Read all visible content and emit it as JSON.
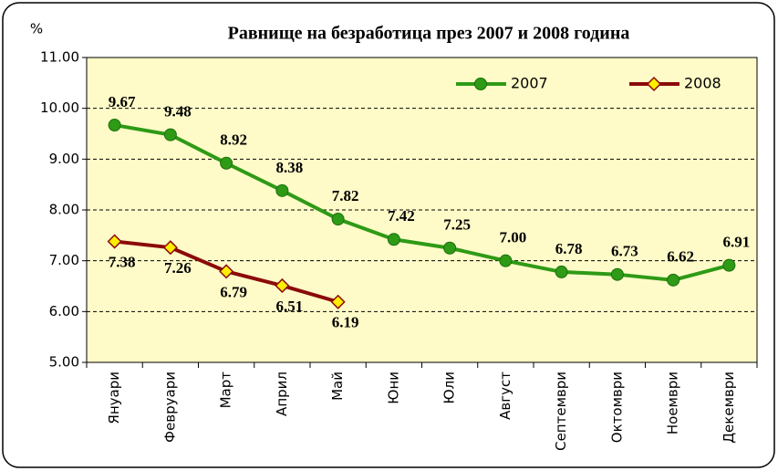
{
  "chart_data": {
    "type": "line",
    "title": "Равнище на безработица през 2007 и 2008 година",
    "y_label": "%",
    "categories": [
      "Януари",
      "Февруари",
      "Март",
      "Април",
      "Май",
      "Юни",
      "Юли",
      "Август",
      "Септември",
      "Октомври",
      "Ноември",
      "Декември"
    ],
    "series": [
      {
        "name": "2007",
        "color": "#2e9a16",
        "marker": "circle",
        "values": [
          9.67,
          9.48,
          8.92,
          8.38,
          7.82,
          7.42,
          7.25,
          7.0,
          6.78,
          6.73,
          6.62,
          6.91
        ],
        "value_labels": [
          "9.67",
          "9.48",
          "8.92",
          "8.38",
          "7.82",
          "7.42",
          "7.25",
          "7.00",
          "6.78",
          "6.73",
          "6.62",
          "6.91"
        ]
      },
      {
        "name": "2008",
        "color": "#8b0a0a",
        "marker": "diamond",
        "marker_fill": "#ffee00",
        "values": [
          7.38,
          7.26,
          6.79,
          6.51,
          6.19,
          null,
          null,
          null,
          null,
          null,
          null,
          null
        ],
        "value_labels": [
          "7.38",
          "7.26",
          "6.79",
          "6.51",
          "6.19",
          null,
          null,
          null,
          null,
          null,
          null,
          null
        ]
      }
    ],
    "ylim": [
      5,
      11
    ],
    "yticks": [
      {
        "value": 5,
        "label": "5.00"
      },
      {
        "value": 6,
        "label": "6.00"
      },
      {
        "value": 7,
        "label": "7.00"
      },
      {
        "value": 8,
        "label": "8.00"
      },
      {
        "value": 9,
        "label": "9.00"
      },
      {
        "value": 10,
        "label": "10.00"
      },
      {
        "value": 11,
        "label": "11.00"
      }
    ],
    "grid": true,
    "legend": "top-right",
    "plot_background": "#fffbc8"
  }
}
